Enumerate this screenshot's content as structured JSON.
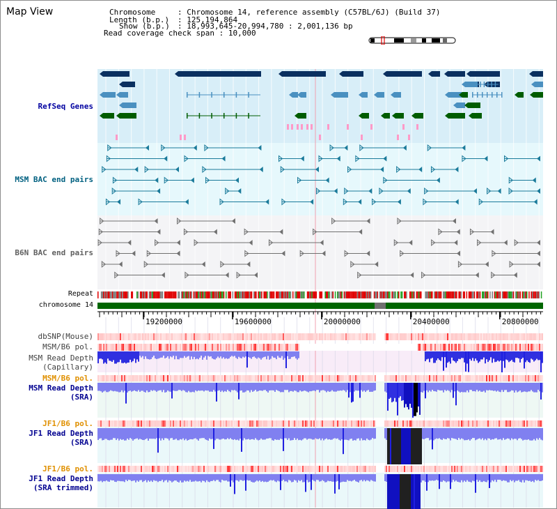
{
  "app": {
    "title": "Map View"
  },
  "header": {
    "chromosome_key": "Chromosome",
    "chromosome_value": "Chromosome 14, reference assembly (C57BL/6J) (Build 37)",
    "length_key": "Length (b.p.)",
    "length_value": "125,194,864",
    "show_key": "Show (b.p.)",
    "show_value": "18,993,645-20,994,780 : 2,001,136 bp",
    "coverage_key": "Read coverage check span",
    "coverage_value": "10,000"
  },
  "tracks": {
    "refseq": "RefSeq Genes",
    "msm_bac": "MSM BAC end pairs",
    "b6n_bac": "B6N BAC end pairs",
    "repeat": "Repeat",
    "chromosome": "chromosome 14",
    "dbsnp": "dbSNP(Mouse)",
    "msm_b6_pol_1": "MSM/B6 pol.",
    "msm_rd_cap_1": "MSM Read Depth",
    "msm_rd_cap_2": "(Capillary)",
    "msm_b6_pol_2": "MSM/B6 pol.",
    "msm_rd_sra_1": "MSM Read Depth",
    "msm_rd_sra_2": "(SRA)",
    "jf1_b6_pol_1": "JF1/B6 pol.",
    "jf1_rd_sra_1": "JF1 Read Depth",
    "jf1_rd_sra_2": "(SRA)",
    "jf1_b6_pol_2": "JF1/B6 pol.",
    "jf1_rd_trim_1": "JF1 Read Depth",
    "jf1_rd_trim_2": "(SRA trimmed)"
  },
  "axis": {
    "tick_labels": [
      "19200000",
      "19600000",
      "20000000",
      "20400000",
      "20800000"
    ],
    "tick_values": [
      19200000,
      19600000,
      20000000,
      20400000,
      20800000
    ],
    "start": 18993645,
    "end": 20994780
  },
  "colors": {
    "refseq_bg": "#d8eef8",
    "msm_bac_bg": "#e6f8fc",
    "b6n_bac_bg": "#f4f4f6",
    "gene_dark": "#0a3060",
    "gene_light": "#4a90c0",
    "gene_green": "#005c00",
    "msm_bac": "#1a7a9a",
    "b6n_bac": "#707070",
    "chromosome_green": "#006600",
    "msm_label": "#000090",
    "pol_label": "#e09000",
    "refseq_label": "#0000a0",
    "msm_bac_label": "#006080"
  }
}
